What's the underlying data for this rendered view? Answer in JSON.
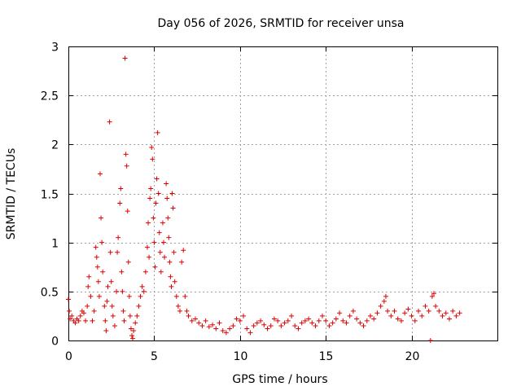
{
  "chart_data": {
    "type": "scatter",
    "title": "Day 056 of 2026, SRMTID for receiver unsa",
    "xlabel": "GPS time / hours",
    "ylabel": "SRMTID / TECUs",
    "xlim": [
      0,
      25
    ],
    "ylim": [
      0,
      3
    ],
    "xticks": [
      0,
      5,
      10,
      15,
      20
    ],
    "yticks": [
      0,
      0.5,
      1,
      1.5,
      2,
      2.5,
      3
    ],
    "xtick_labels": [
      "0",
      "5",
      "10",
      "15",
      "20"
    ],
    "ytick_labels": [
      "0",
      "0.5",
      "1",
      "1.5",
      "2",
      "2.5",
      "3"
    ],
    "grid": true,
    "marker": "+",
    "color": "#e00000",
    "series": [
      {
        "name": "SRMTID",
        "points": [
          [
            0.0,
            0.42
          ],
          [
            0.05,
            0.3
          ],
          [
            0.1,
            0.22
          ],
          [
            0.2,
            0.25
          ],
          [
            0.3,
            0.2
          ],
          [
            0.4,
            0.18
          ],
          [
            0.5,
            0.22
          ],
          [
            0.6,
            0.2
          ],
          [
            0.7,
            0.25
          ],
          [
            0.8,
            0.3
          ],
          [
            0.9,
            0.28
          ],
          [
            1.0,
            0.2
          ],
          [
            1.1,
            0.35
          ],
          [
            1.15,
            0.55
          ],
          [
            1.2,
            0.65
          ],
          [
            1.3,
            0.45
          ],
          [
            1.4,
            0.2
          ],
          [
            1.5,
            0.3
          ],
          [
            1.6,
            0.95
          ],
          [
            1.65,
            0.85
          ],
          [
            1.7,
            0.75
          ],
          [
            1.75,
            0.6
          ],
          [
            1.8,
            0.45
          ],
          [
            1.85,
            1.7
          ],
          [
            1.9,
            1.25
          ],
          [
            1.95,
            1.0
          ],
          [
            2.0,
            0.7
          ],
          [
            2.1,
            0.35
          ],
          [
            2.15,
            0.2
          ],
          [
            2.2,
            0.1
          ],
          [
            2.25,
            0.4
          ],
          [
            2.3,
            0.55
          ],
          [
            2.4,
            2.23
          ],
          [
            2.45,
            0.9
          ],
          [
            2.5,
            0.6
          ],
          [
            2.55,
            0.35
          ],
          [
            2.6,
            0.25
          ],
          [
            2.7,
            0.15
          ],
          [
            2.8,
            0.5
          ],
          [
            2.85,
            0.9
          ],
          [
            2.9,
            1.05
          ],
          [
            3.0,
            1.4
          ],
          [
            3.05,
            1.55
          ],
          [
            3.1,
            0.7
          ],
          [
            3.15,
            0.5
          ],
          [
            3.2,
            0.3
          ],
          [
            3.25,
            0.2
          ],
          [
            3.3,
            2.88
          ],
          [
            3.35,
            1.9
          ],
          [
            3.4,
            1.78
          ],
          [
            3.45,
            1.32
          ],
          [
            3.5,
            0.8
          ],
          [
            3.55,
            0.45
          ],
          [
            3.6,
            0.25
          ],
          [
            3.65,
            0.12
          ],
          [
            3.7,
            0.05
          ],
          [
            3.75,
            0.02
          ],
          [
            3.8,
            0.1
          ],
          [
            3.9,
            0.18
          ],
          [
            4.0,
            0.25
          ],
          [
            4.1,
            0.35
          ],
          [
            4.2,
            0.45
          ],
          [
            4.3,
            0.55
          ],
          [
            4.4,
            0.5
          ],
          [
            4.5,
            0.7
          ],
          [
            4.6,
            0.95
          ],
          [
            4.65,
            1.2
          ],
          [
            4.7,
            0.85
          ],
          [
            4.75,
            1.45
          ],
          [
            4.8,
            1.55
          ],
          [
            4.85,
            1.97
          ],
          [
            4.9,
            1.85
          ],
          [
            4.95,
            1.25
          ],
          [
            5.0,
            1.0
          ],
          [
            5.05,
            0.75
          ],
          [
            5.1,
            1.4
          ],
          [
            5.15,
            1.65
          ],
          [
            5.2,
            2.12
          ],
          [
            5.25,
            1.5
          ],
          [
            5.3,
            1.1
          ],
          [
            5.35,
            0.9
          ],
          [
            5.4,
            0.7
          ],
          [
            5.5,
            1.2
          ],
          [
            5.55,
            1.0
          ],
          [
            5.6,
            0.85
          ],
          [
            5.7,
            1.6
          ],
          [
            5.75,
            1.45
          ],
          [
            5.8,
            1.25
          ],
          [
            5.85,
            1.05
          ],
          [
            5.9,
            0.8
          ],
          [
            5.95,
            0.65
          ],
          [
            6.0,
            0.55
          ],
          [
            6.05,
            1.5
          ],
          [
            6.1,
            1.35
          ],
          [
            6.15,
            0.9
          ],
          [
            6.2,
            0.6
          ],
          [
            6.3,
            0.45
          ],
          [
            6.4,
            0.35
          ],
          [
            6.5,
            0.3
          ],
          [
            6.6,
            0.8
          ],
          [
            6.7,
            0.92
          ],
          [
            6.8,
            0.45
          ],
          [
            6.9,
            0.3
          ],
          [
            7.0,
            0.25
          ],
          [
            7.2,
            0.2
          ],
          [
            7.4,
            0.22
          ],
          [
            7.6,
            0.18
          ],
          [
            7.8,
            0.15
          ],
          [
            8.0,
            0.2
          ],
          [
            8.2,
            0.14
          ],
          [
            8.4,
            0.16
          ],
          [
            8.6,
            0.12
          ],
          [
            8.8,
            0.18
          ],
          [
            9.0,
            0.1
          ],
          [
            9.2,
            0.08
          ],
          [
            9.4,
            0.12
          ],
          [
            9.6,
            0.15
          ],
          [
            9.8,
            0.22
          ],
          [
            10.0,
            0.2
          ],
          [
            10.2,
            0.25
          ],
          [
            10.4,
            0.12
          ],
          [
            10.6,
            0.08
          ],
          [
            10.8,
            0.15
          ],
          [
            11.0,
            0.18
          ],
          [
            11.2,
            0.2
          ],
          [
            11.4,
            0.16
          ],
          [
            11.6,
            0.12
          ],
          [
            11.8,
            0.15
          ],
          [
            12.0,
            0.22
          ],
          [
            12.2,
            0.2
          ],
          [
            12.4,
            0.15
          ],
          [
            12.6,
            0.18
          ],
          [
            12.8,
            0.2
          ],
          [
            13.0,
            0.25
          ],
          [
            13.2,
            0.15
          ],
          [
            13.4,
            0.12
          ],
          [
            13.6,
            0.18
          ],
          [
            13.8,
            0.2
          ],
          [
            14.0,
            0.22
          ],
          [
            14.2,
            0.18
          ],
          [
            14.4,
            0.15
          ],
          [
            14.6,
            0.2
          ],
          [
            14.8,
            0.25
          ],
          [
            15.0,
            0.2
          ],
          [
            15.2,
            0.15
          ],
          [
            15.4,
            0.18
          ],
          [
            15.6,
            0.22
          ],
          [
            15.8,
            0.28
          ],
          [
            16.0,
            0.2
          ],
          [
            16.2,
            0.18
          ],
          [
            16.4,
            0.25
          ],
          [
            16.6,
            0.3
          ],
          [
            16.8,
            0.22
          ],
          [
            17.0,
            0.18
          ],
          [
            17.2,
            0.15
          ],
          [
            17.4,
            0.2
          ],
          [
            17.6,
            0.25
          ],
          [
            17.8,
            0.22
          ],
          [
            18.0,
            0.28
          ],
          [
            18.2,
            0.35
          ],
          [
            18.4,
            0.4
          ],
          [
            18.5,
            0.45
          ],
          [
            18.6,
            0.3
          ],
          [
            18.8,
            0.25
          ],
          [
            19.0,
            0.3
          ],
          [
            19.2,
            0.22
          ],
          [
            19.4,
            0.2
          ],
          [
            19.6,
            0.28
          ],
          [
            19.8,
            0.32
          ],
          [
            20.0,
            0.25
          ],
          [
            20.2,
            0.2
          ],
          [
            20.4,
            0.3
          ],
          [
            20.6,
            0.25
          ],
          [
            20.8,
            0.35
          ],
          [
            21.0,
            0.3
          ],
          [
            21.1,
            0.0
          ],
          [
            21.2,
            0.45
          ],
          [
            21.3,
            0.48
          ],
          [
            21.4,
            0.35
          ],
          [
            21.6,
            0.3
          ],
          [
            21.8,
            0.25
          ],
          [
            22.0,
            0.28
          ],
          [
            22.2,
            0.22
          ],
          [
            22.4,
            0.3
          ],
          [
            22.6,
            0.25
          ],
          [
            22.8,
            0.28
          ]
        ]
      }
    ]
  }
}
